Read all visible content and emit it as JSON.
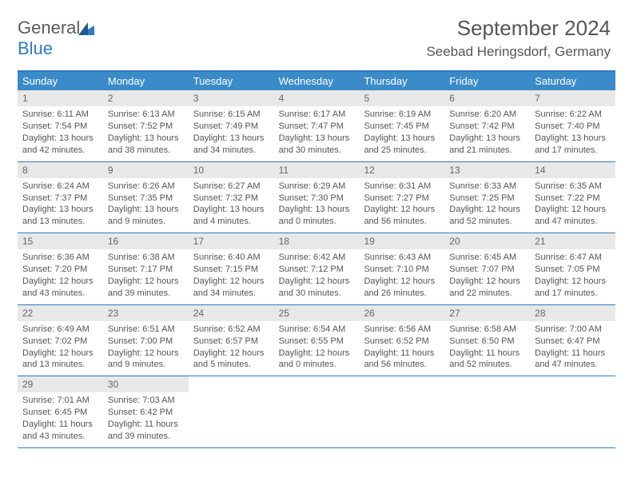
{
  "logo": {
    "line1": "General",
    "line2": "Blue"
  },
  "header": {
    "title": "September 2024",
    "location": "Seebad Heringsdorf, Germany"
  },
  "calendar": {
    "header_bg": "#3b8bc9",
    "border_color": "#2f7bbf",
    "daynum_bg": "#e8e8e8",
    "text_color": "#555555",
    "font_size_body": 11,
    "font_size_header": 13,
    "day_names": [
      "Sunday",
      "Monday",
      "Tuesday",
      "Wednesday",
      "Thursday",
      "Friday",
      "Saturday"
    ],
    "weeks": [
      [
        {
          "n": "1",
          "sr": "6:11 AM",
          "ss": "7:54 PM",
          "dl": "13 hours and 42 minutes."
        },
        {
          "n": "2",
          "sr": "6:13 AM",
          "ss": "7:52 PM",
          "dl": "13 hours and 38 minutes."
        },
        {
          "n": "3",
          "sr": "6:15 AM",
          "ss": "7:49 PM",
          "dl": "13 hours and 34 minutes."
        },
        {
          "n": "4",
          "sr": "6:17 AM",
          "ss": "7:47 PM",
          "dl": "13 hours and 30 minutes."
        },
        {
          "n": "5",
          "sr": "6:19 AM",
          "ss": "7:45 PM",
          "dl": "13 hours and 25 minutes."
        },
        {
          "n": "6",
          "sr": "6:20 AM",
          "ss": "7:42 PM",
          "dl": "13 hours and 21 minutes."
        },
        {
          "n": "7",
          "sr": "6:22 AM",
          "ss": "7:40 PM",
          "dl": "13 hours and 17 minutes."
        }
      ],
      [
        {
          "n": "8",
          "sr": "6:24 AM",
          "ss": "7:37 PM",
          "dl": "13 hours and 13 minutes."
        },
        {
          "n": "9",
          "sr": "6:26 AM",
          "ss": "7:35 PM",
          "dl": "13 hours and 9 minutes."
        },
        {
          "n": "10",
          "sr": "6:27 AM",
          "ss": "7:32 PM",
          "dl": "13 hours and 4 minutes."
        },
        {
          "n": "11",
          "sr": "6:29 AM",
          "ss": "7:30 PM",
          "dl": "13 hours and 0 minutes."
        },
        {
          "n": "12",
          "sr": "6:31 AM",
          "ss": "7:27 PM",
          "dl": "12 hours and 56 minutes."
        },
        {
          "n": "13",
          "sr": "6:33 AM",
          "ss": "7:25 PM",
          "dl": "12 hours and 52 minutes."
        },
        {
          "n": "14",
          "sr": "6:35 AM",
          "ss": "7:22 PM",
          "dl": "12 hours and 47 minutes."
        }
      ],
      [
        {
          "n": "15",
          "sr": "6:36 AM",
          "ss": "7:20 PM",
          "dl": "12 hours and 43 minutes."
        },
        {
          "n": "16",
          "sr": "6:38 AM",
          "ss": "7:17 PM",
          "dl": "12 hours and 39 minutes."
        },
        {
          "n": "17",
          "sr": "6:40 AM",
          "ss": "7:15 PM",
          "dl": "12 hours and 34 minutes."
        },
        {
          "n": "18",
          "sr": "6:42 AM",
          "ss": "7:12 PM",
          "dl": "12 hours and 30 minutes."
        },
        {
          "n": "19",
          "sr": "6:43 AM",
          "ss": "7:10 PM",
          "dl": "12 hours and 26 minutes."
        },
        {
          "n": "20",
          "sr": "6:45 AM",
          "ss": "7:07 PM",
          "dl": "12 hours and 22 minutes."
        },
        {
          "n": "21",
          "sr": "6:47 AM",
          "ss": "7:05 PM",
          "dl": "12 hours and 17 minutes."
        }
      ],
      [
        {
          "n": "22",
          "sr": "6:49 AM",
          "ss": "7:02 PM",
          "dl": "12 hours and 13 minutes."
        },
        {
          "n": "23",
          "sr": "6:51 AM",
          "ss": "7:00 PM",
          "dl": "12 hours and 9 minutes."
        },
        {
          "n": "24",
          "sr": "6:52 AM",
          "ss": "6:57 PM",
          "dl": "12 hours and 5 minutes."
        },
        {
          "n": "25",
          "sr": "6:54 AM",
          "ss": "6:55 PM",
          "dl": "12 hours and 0 minutes."
        },
        {
          "n": "26",
          "sr": "6:56 AM",
          "ss": "6:52 PM",
          "dl": "11 hours and 56 minutes."
        },
        {
          "n": "27",
          "sr": "6:58 AM",
          "ss": "6:50 PM",
          "dl": "11 hours and 52 minutes."
        },
        {
          "n": "28",
          "sr": "7:00 AM",
          "ss": "6:47 PM",
          "dl": "11 hours and 47 minutes."
        }
      ],
      [
        {
          "n": "29",
          "sr": "7:01 AM",
          "ss": "6:45 PM",
          "dl": "11 hours and 43 minutes."
        },
        {
          "n": "30",
          "sr": "7:03 AM",
          "ss": "6:42 PM",
          "dl": "11 hours and 39 minutes."
        },
        null,
        null,
        null,
        null,
        null
      ]
    ],
    "labels": {
      "sunrise": "Sunrise: ",
      "sunset": "Sunset: ",
      "daylight": "Daylight: "
    }
  }
}
